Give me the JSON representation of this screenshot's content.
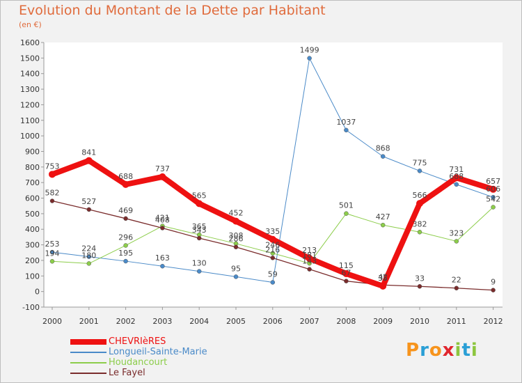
{
  "title": "Evolution du Montant de la Dette par Habitant",
  "subtitle": "(en €)",
  "logo": {
    "text": "Proxiti",
    "colors": [
      "#f7941d",
      "#2a9fd6",
      "#f7941d",
      "#e0262e",
      "#8dc63f",
      "#2a9fd6",
      "#8dc63f"
    ]
  },
  "chart_data": {
    "type": "line",
    "x": [
      "2000",
      "2001",
      "2002",
      "2003",
      "2004",
      "2005",
      "2006",
      "2007",
      "2008",
      "2009",
      "2010",
      "2011",
      "2012"
    ],
    "ylim": [
      -100,
      1600
    ],
    "yticks": [
      -100,
      0,
      100,
      200,
      300,
      400,
      500,
      600,
      700,
      800,
      900,
      1000,
      1100,
      1200,
      1300,
      1400,
      1500,
      1600
    ],
    "grid": false,
    "legend": "bottom-left",
    "series": [
      {
        "name": "CHEVRIèRES",
        "color": "#ee1111",
        "values": [
          753,
          841,
          688,
          737,
          565,
          452,
          335,
          213,
          115,
          35,
          566,
          731,
          657
        ]
      },
      {
        "name": "Longueil-Sainte-Marie",
        "color": "#4a8ac8",
        "values": [
          253,
          224,
          195,
          163,
          130,
          95,
          59,
          1499,
          1037,
          868,
          775,
          688,
          606
        ]
      },
      {
        "name": "Houdancourt",
        "color": "#8ccd4a",
        "values": [
          194,
          180,
          296,
          421,
          365,
          308,
          246,
          181,
          501,
          427,
          382,
          323,
          542
        ]
      },
      {
        "name": "Le Fayel",
        "color": "#7a2c2c",
        "values": [
          582,
          527,
          469,
          408,
          343,
          286,
          216,
          143,
          67,
          42,
          33,
          22,
          9
        ]
      }
    ]
  }
}
